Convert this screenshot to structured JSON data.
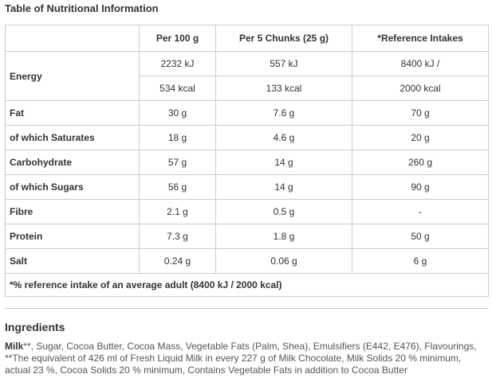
{
  "title": "Table of Nutritional Information",
  "table": {
    "headers": [
      "",
      "Per 100 g",
      "Per 5 Chunks (25 g)",
      "*Reference Intakes"
    ],
    "energy_label": "Energy",
    "energy_kj": [
      "2232 kJ",
      "557 kJ",
      "8400 kJ /"
    ],
    "energy_kcal": [
      "534 kcal",
      "133 kcal",
      "2000 kcal"
    ],
    "rows": [
      {
        "label": "Fat",
        "values": [
          "30 g",
          "7.6 g",
          "70 g"
        ]
      },
      {
        "label": "of which Saturates",
        "values": [
          "18 g",
          "4.6 g",
          "20 g"
        ]
      },
      {
        "label": "Carbohydrate",
        "values": [
          "57 g",
          "14 g",
          "260 g"
        ]
      },
      {
        "label": "of which Sugars",
        "values": [
          "56 g",
          "14 g",
          "90 g"
        ]
      },
      {
        "label": "Fibre",
        "values": [
          "2.1 g",
          "0.5 g",
          "-"
        ]
      },
      {
        "label": "Protein",
        "values": [
          "7.3 g",
          "1.8 g",
          "50 g"
        ]
      },
      {
        "label": "Salt",
        "values": [
          "0.24 g",
          "0.06 g",
          "6 g"
        ]
      }
    ],
    "footnote": "*% reference intake of an average adult (8400 kJ / 2000 kcal)"
  },
  "ingredients": {
    "heading": "Ingredients",
    "bold_lead": "Milk",
    "text": "**, Sugar, Cocoa Butter, Cocoa Mass, Vegetable Fats (Palm, Shea), Emulsifiers (E442, E476), Flavourings, **The equivalent of 426 ml of Fresh Liquid Milk in every 227 g of Milk Chocolate, Milk Solids 20 % minimum, actual 23 %, Cocoa Solids 20 % minimum, Contains Vegetable Fats in addition to Cocoa Butter"
  }
}
